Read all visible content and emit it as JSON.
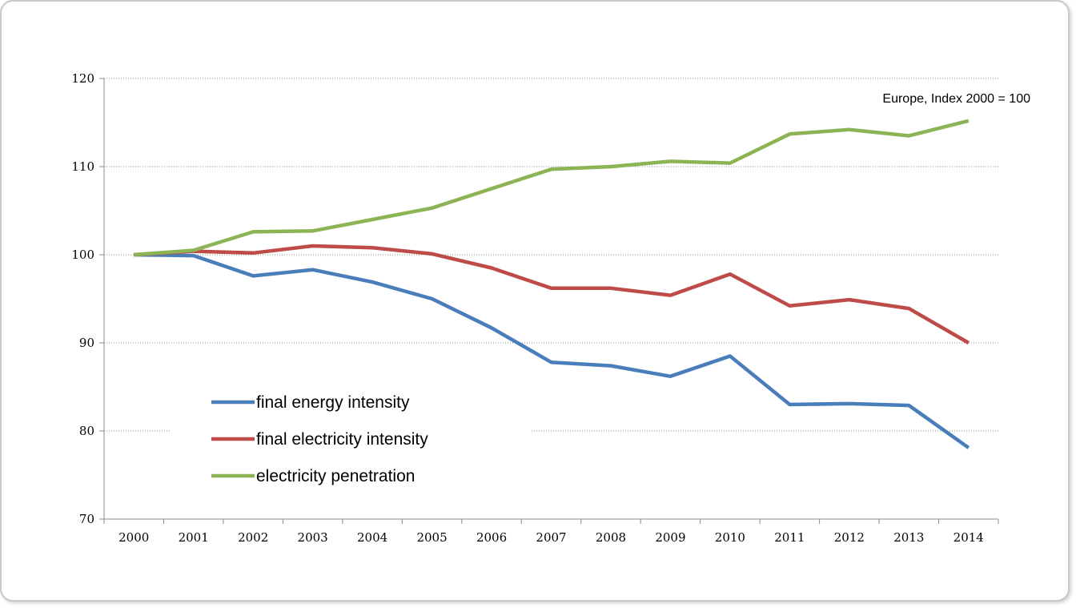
{
  "chart_data": {
    "type": "line",
    "title": "",
    "xlabel": "",
    "ylabel": "",
    "annotation": "Europe, Index 2000 = 100",
    "categories": [
      "2000",
      "2001",
      "2002",
      "2003",
      "2004",
      "2005",
      "2006",
      "2007",
      "2008",
      "2009",
      "2010",
      "2011",
      "2012",
      "2013",
      "2014"
    ],
    "ylim": [
      70,
      120
    ],
    "yticks": [
      "70",
      "80",
      "90",
      "100",
      "110",
      "120"
    ],
    "grid": "horizontal dotted",
    "legend_position": "lower-left",
    "series": [
      {
        "name": "final energy intensity",
        "color": "#4a7ebb",
        "values": [
          100,
          99.9,
          97.6,
          98.3,
          96.9,
          95.0,
          91.7,
          87.8,
          87.4,
          86.2,
          88.5,
          83.0,
          83.1,
          82.9,
          78.1
        ]
      },
      {
        "name": "final electricity intensity",
        "color": "#be4b48",
        "values": [
          100,
          100.4,
          100.2,
          101.0,
          100.8,
          100.1,
          98.5,
          96.2,
          96.2,
          95.4,
          97.8,
          94.2,
          94.9,
          93.9,
          90.0
        ]
      },
      {
        "name": "electricity penetration",
        "color": "#8cb455",
        "values": [
          100,
          100.5,
          102.6,
          102.7,
          104.0,
          105.3,
          107.5,
          109.7,
          110.0,
          110.6,
          110.4,
          113.7,
          114.2,
          113.5,
          115.2
        ]
      }
    ]
  }
}
